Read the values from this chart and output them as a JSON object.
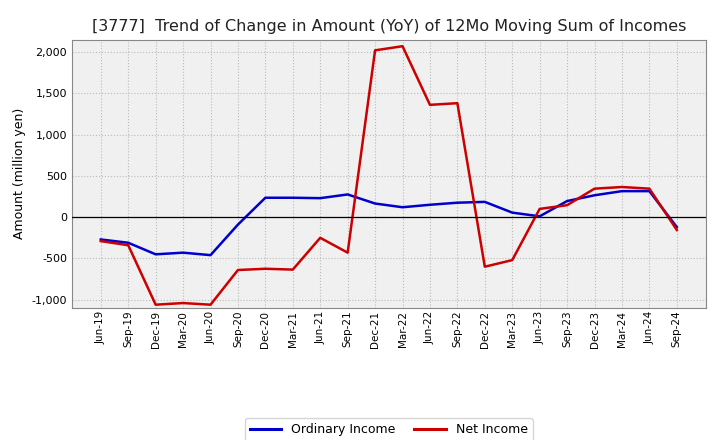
{
  "title": "[3777]  Trend of Change in Amount (YoY) of 12Mo Moving Sum of Incomes",
  "ylabel": "Amount (million yen)",
  "x_labels": [
    "Jun-19",
    "Sep-19",
    "Dec-19",
    "Mar-20",
    "Jun-20",
    "Sep-20",
    "Dec-20",
    "Mar-21",
    "Jun-21",
    "Sep-21",
    "Dec-21",
    "Mar-22",
    "Jun-22",
    "Sep-22",
    "Dec-22",
    "Mar-23",
    "Jun-23",
    "Sep-23",
    "Dec-23",
    "Mar-24",
    "Jun-24",
    "Sep-24"
  ],
  "ordinary_income": [
    -270,
    -310,
    -450,
    -430,
    -460,
    -90,
    235,
    235,
    230,
    275,
    165,
    120,
    150,
    175,
    185,
    55,
    10,
    195,
    265,
    315,
    315,
    -120
  ],
  "net_income": [
    -290,
    -340,
    -1060,
    -1040,
    -1060,
    -640,
    -625,
    -635,
    -250,
    -430,
    2020,
    2070,
    1360,
    1380,
    -600,
    -520,
    100,
    145,
    345,
    365,
    345,
    -155
  ],
  "ordinary_color": "#0000cc",
  "net_color": "#cc0000",
  "background_color": "#ffffff",
  "plot_bg_color": "#f0f0f0",
  "grid_color": "#bbbbbb",
  "ylim": [
    -1100,
    2150
  ],
  "yticks": [
    -1000,
    -500,
    0,
    500,
    1000,
    1500,
    2000
  ],
  "line_width": 1.8,
  "title_fontsize": 11.5,
  "legend_labels": [
    "Ordinary Income",
    "Net Income"
  ]
}
